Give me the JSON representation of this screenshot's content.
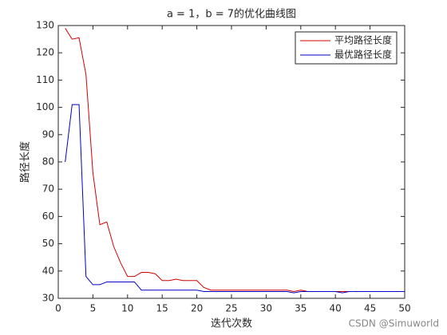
{
  "chart_data": {
    "type": "line",
    "title": "a = 1，b = 7的优化曲线图",
    "xlabel": "迭代次数",
    "ylabel": "路径长度",
    "watermark": "CSDN @Simuworld",
    "legend": "northeast",
    "x": [
      1,
      2,
      3,
      4,
      5,
      6,
      7,
      8,
      9,
      10,
      11,
      12,
      13,
      14,
      15,
      16,
      17,
      18,
      19,
      20,
      21,
      22,
      23,
      24,
      25,
      26,
      27,
      28,
      29,
      30,
      31,
      32,
      33,
      34,
      35,
      36,
      37,
      38,
      39,
      40,
      41,
      42,
      43,
      44,
      45,
      46,
      47,
      48,
      49,
      50
    ],
    "series": [
      {
        "name": "平均路径长度",
        "color": "#d40000",
        "values": [
          129,
          125,
          125.5,
          112,
          76,
          57,
          58,
          49,
          43,
          38,
          38,
          39.5,
          39.5,
          39,
          36.5,
          36.5,
          37,
          36.5,
          36.5,
          36.5,
          34,
          33,
          33,
          33,
          33,
          33,
          33,
          33,
          33,
          33,
          33,
          33,
          33,
          32.5,
          33,
          32.5,
          32.5,
          32.5,
          32.5,
          32.5,
          32.5,
          32.5,
          32.5,
          32.5,
          32.5,
          32.5,
          32.5,
          32.5,
          32.5,
          32.5
        ]
      },
      {
        "name": "最优路径长度",
        "color": "#0000c8",
        "values": [
          80,
          101,
          101,
          38,
          35,
          35,
          36,
          36,
          36,
          36,
          36,
          33,
          33,
          33,
          33,
          33,
          33,
          33,
          33,
          33,
          32.5,
          32.5,
          32.5,
          32.5,
          32.5,
          32.5,
          32.5,
          32.5,
          32.5,
          32.5,
          32.5,
          32.5,
          32.5,
          32,
          32.5,
          32.5,
          32.5,
          32.5,
          32.5,
          32.5,
          32,
          32.5,
          32.5,
          32.5,
          32.5,
          32.5,
          32.5,
          32.5,
          32.5,
          32.5
        ]
      }
    ],
    "xlim": [
      0,
      50
    ],
    "xticks": [
      0,
      5,
      10,
      15,
      20,
      25,
      30,
      35,
      40,
      45,
      50
    ],
    "ylim": [
      30,
      130
    ],
    "yticks": [
      30,
      40,
      50,
      60,
      70,
      80,
      90,
      100,
      110,
      120,
      130
    ],
    "grid": false
  }
}
